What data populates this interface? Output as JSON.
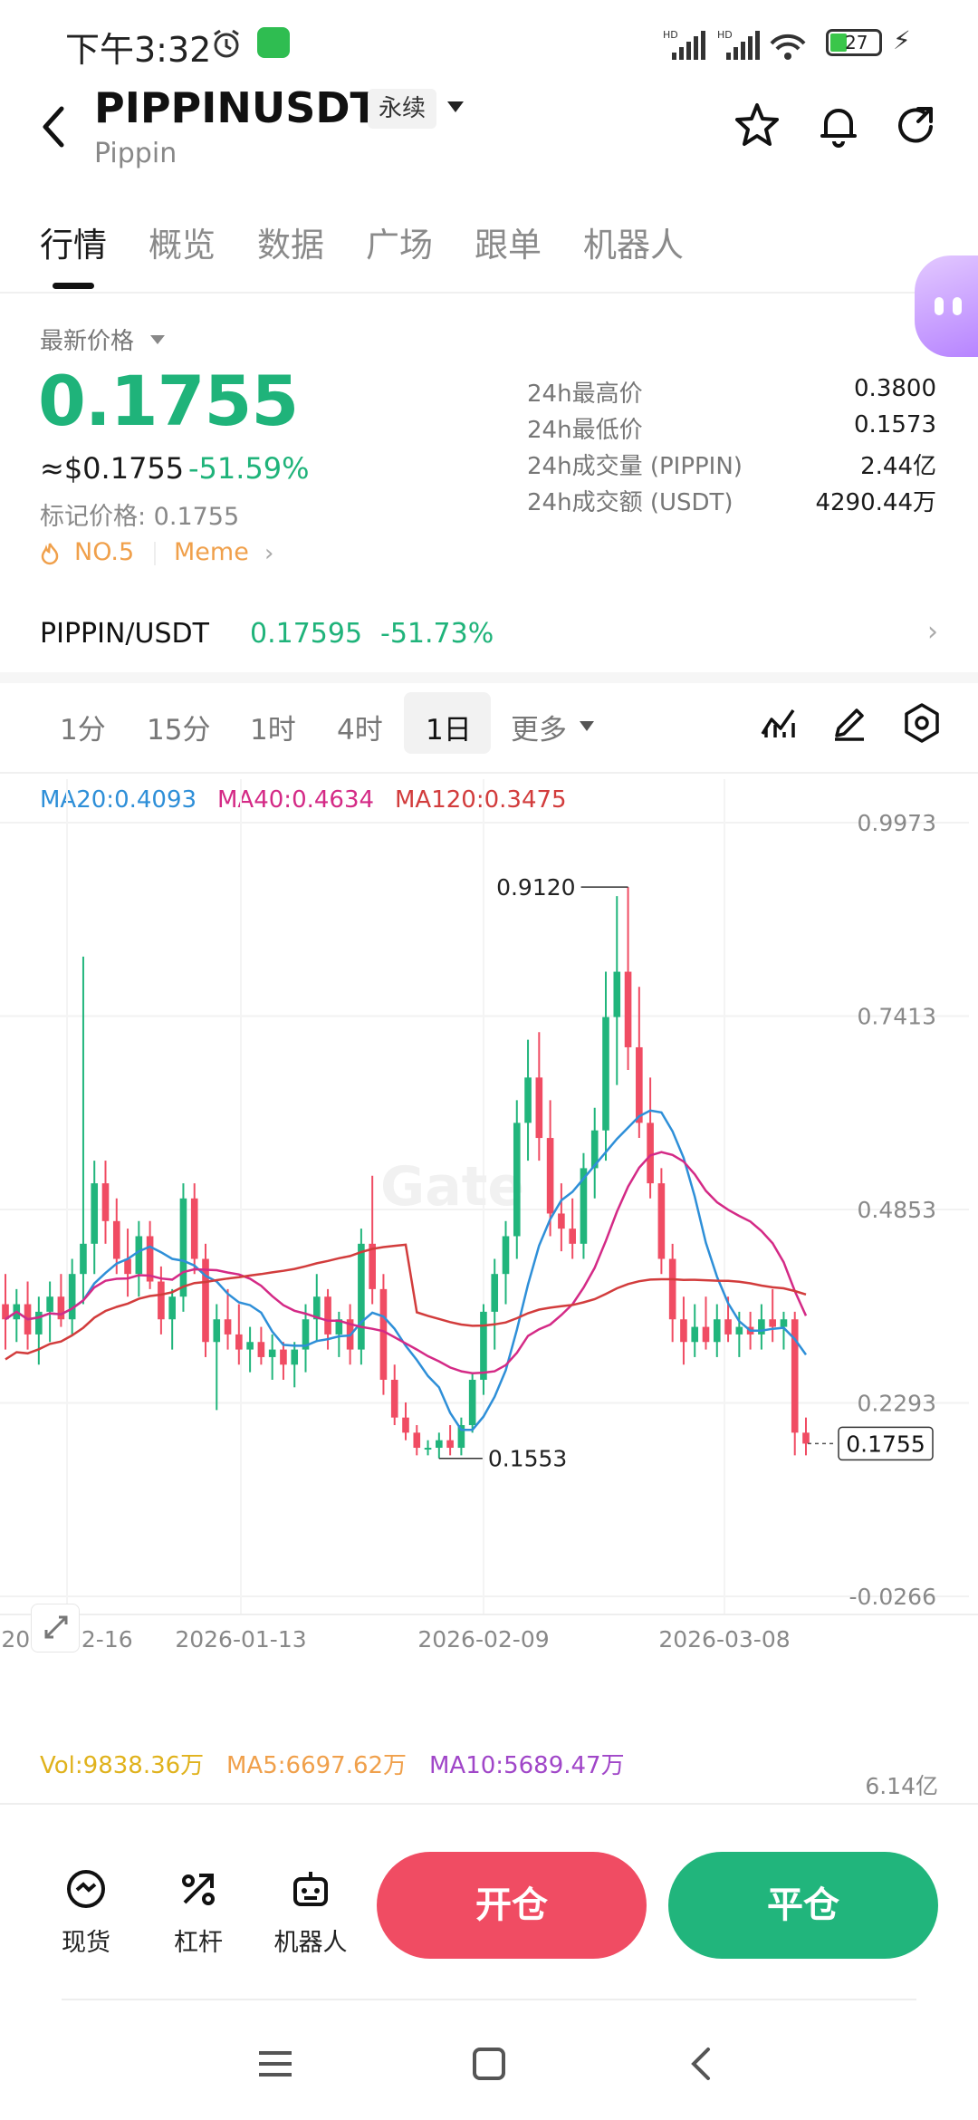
{
  "status_bar": {
    "time": "下午3:32",
    "battery": "27"
  },
  "header": {
    "symbol": "PIPPINUSDT",
    "contract_type": "永续",
    "name": "Pippin"
  },
  "tabs": [
    "行情",
    "概览",
    "数据",
    "广场",
    "跟单",
    "机器人"
  ],
  "price": {
    "label": "最新价格",
    "last": "0.1755",
    "usd": "≈$0.1755",
    "change": "-51.59%",
    "mark": "标记价格: 0.1755",
    "rank": "NO.5",
    "tag": "Meme"
  },
  "stats": [
    {
      "label": "24h最高价",
      "value": "0.3800"
    },
    {
      "label": "24h最低价",
      "value": "0.1573"
    },
    {
      "label": "24h成交量 (PIPPIN)",
      "value": "2.44亿"
    },
    {
      "label": "24h成交额 (USDT)",
      "value": "4290.44万"
    }
  ],
  "spot_pair": {
    "name": "PIPPIN/USDT",
    "price": "0.17595",
    "change": "-51.73%"
  },
  "timeframes": [
    "1分",
    "15分",
    "1时",
    "4时",
    "1日",
    "更多"
  ],
  "ma_legend": [
    {
      "label": "MA20:0.4093",
      "color": "#2e8fd8"
    },
    {
      "label": "MA40:0.4634",
      "color": "#d42a86"
    },
    {
      "label": "MA120:0.3475",
      "color": "#d23c3c"
    }
  ],
  "chart_data": {
    "type": "candlestick",
    "y_ticks": [
      "0.9973",
      "0.7413",
      "0.4853",
      "0.2293",
      "-0.0266"
    ],
    "ylim": [
      -0.0266,
      0.9973
    ],
    "x_ticks": [
      "2025-12-16",
      "2026-01-13",
      "2026-02-09",
      "2026-03-08"
    ],
    "high_marker": "0.9120",
    "low_marker": "0.1553",
    "last_price_tag": "0.1755",
    "watermark": "Gate",
    "candles_ohlc": [
      [
        0.36,
        0.4,
        0.3,
        0.34
      ],
      [
        0.34,
        0.38,
        0.31,
        0.36
      ],
      [
        0.36,
        0.39,
        0.3,
        0.32
      ],
      [
        0.32,
        0.37,
        0.28,
        0.35
      ],
      [
        0.35,
        0.39,
        0.31,
        0.37
      ],
      [
        0.37,
        0.4,
        0.33,
        0.34
      ],
      [
        0.34,
        0.42,
        0.32,
        0.4
      ],
      [
        0.4,
        0.82,
        0.36,
        0.44
      ],
      [
        0.44,
        0.55,
        0.4,
        0.52
      ],
      [
        0.52,
        0.55,
        0.44,
        0.47
      ],
      [
        0.47,
        0.5,
        0.4,
        0.42
      ],
      [
        0.42,
        0.46,
        0.37,
        0.4
      ],
      [
        0.4,
        0.47,
        0.37,
        0.45
      ],
      [
        0.45,
        0.47,
        0.38,
        0.39
      ],
      [
        0.39,
        0.41,
        0.32,
        0.34
      ],
      [
        0.34,
        0.38,
        0.3,
        0.37
      ],
      [
        0.37,
        0.52,
        0.35,
        0.5
      ],
      [
        0.5,
        0.52,
        0.4,
        0.42
      ],
      [
        0.42,
        0.44,
        0.29,
        0.31
      ],
      [
        0.31,
        0.36,
        0.22,
        0.34
      ],
      [
        0.34,
        0.38,
        0.3,
        0.32
      ],
      [
        0.32,
        0.36,
        0.28,
        0.3
      ],
      [
        0.3,
        0.33,
        0.27,
        0.31
      ],
      [
        0.31,
        0.33,
        0.28,
        0.29
      ],
      [
        0.29,
        0.32,
        0.26,
        0.3
      ],
      [
        0.3,
        0.31,
        0.26,
        0.28
      ],
      [
        0.28,
        0.31,
        0.25,
        0.3
      ],
      [
        0.3,
        0.36,
        0.27,
        0.34
      ],
      [
        0.34,
        0.4,
        0.31,
        0.37
      ],
      [
        0.37,
        0.38,
        0.3,
        0.32
      ],
      [
        0.32,
        0.35,
        0.29,
        0.34
      ],
      [
        0.34,
        0.36,
        0.28,
        0.3
      ],
      [
        0.3,
        0.46,
        0.28,
        0.44
      ],
      [
        0.44,
        0.53,
        0.36,
        0.38
      ],
      [
        0.38,
        0.4,
        0.24,
        0.26
      ],
      [
        0.26,
        0.28,
        0.2,
        0.21
      ],
      [
        0.21,
        0.23,
        0.18,
        0.19
      ],
      [
        0.19,
        0.2,
        0.16,
        0.17
      ],
      [
        0.17,
        0.18,
        0.16,
        0.17
      ],
      [
        0.17,
        0.19,
        0.156,
        0.18
      ],
      [
        0.18,
        0.2,
        0.16,
        0.17
      ],
      [
        0.17,
        0.21,
        0.16,
        0.2
      ],
      [
        0.2,
        0.27,
        0.19,
        0.26
      ],
      [
        0.26,
        0.36,
        0.24,
        0.35
      ],
      [
        0.35,
        0.42,
        0.3,
        0.4
      ],
      [
        0.4,
        0.47,
        0.36,
        0.45
      ],
      [
        0.45,
        0.63,
        0.42,
        0.6
      ],
      [
        0.6,
        0.71,
        0.55,
        0.66
      ],
      [
        0.66,
        0.72,
        0.55,
        0.58
      ],
      [
        0.58,
        0.63,
        0.45,
        0.48
      ],
      [
        0.48,
        0.52,
        0.43,
        0.46
      ],
      [
        0.46,
        0.5,
        0.42,
        0.44
      ],
      [
        0.44,
        0.56,
        0.42,
        0.54
      ],
      [
        0.54,
        0.62,
        0.5,
        0.59
      ],
      [
        0.59,
        0.8,
        0.55,
        0.74
      ],
      [
        0.74,
        0.9,
        0.65,
        0.8
      ],
      [
        0.8,
        0.912,
        0.67,
        0.7
      ],
      [
        0.7,
        0.78,
        0.58,
        0.6
      ],
      [
        0.6,
        0.66,
        0.5,
        0.52
      ],
      [
        0.52,
        0.54,
        0.4,
        0.42
      ],
      [
        0.42,
        0.44,
        0.31,
        0.34
      ],
      [
        0.34,
        0.37,
        0.28,
        0.31
      ],
      [
        0.31,
        0.36,
        0.29,
        0.33
      ],
      [
        0.33,
        0.37,
        0.3,
        0.31
      ],
      [
        0.31,
        0.36,
        0.29,
        0.34
      ],
      [
        0.34,
        0.37,
        0.31,
        0.32
      ],
      [
        0.32,
        0.35,
        0.29,
        0.33
      ],
      [
        0.33,
        0.35,
        0.3,
        0.32
      ],
      [
        0.32,
        0.36,
        0.3,
        0.34
      ],
      [
        0.34,
        0.38,
        0.31,
        0.33
      ],
      [
        0.33,
        0.35,
        0.3,
        0.34
      ],
      [
        0.34,
        0.35,
        0.16,
        0.19
      ],
      [
        0.19,
        0.21,
        0.16,
        0.1755
      ]
    ]
  },
  "volume": {
    "vol": "Vol:9838.36万",
    "ma5": "MA5:6697.62万",
    "ma10": "MA10:5689.47万",
    "axis": "6.14亿"
  },
  "actions": [
    {
      "label": "现货",
      "icon": "spot-icon"
    },
    {
      "label": "杠杆",
      "icon": "leverage-icon"
    },
    {
      "label": "机器人",
      "icon": "robot-icon"
    }
  ],
  "buttons": {
    "open": "开仓",
    "close": "平仓"
  },
  "colors": {
    "up": "#21b57c",
    "down": "#f04c63",
    "ma20": "#2e8fd8",
    "ma40": "#d42a86",
    "ma120": "#d23c3c"
  }
}
